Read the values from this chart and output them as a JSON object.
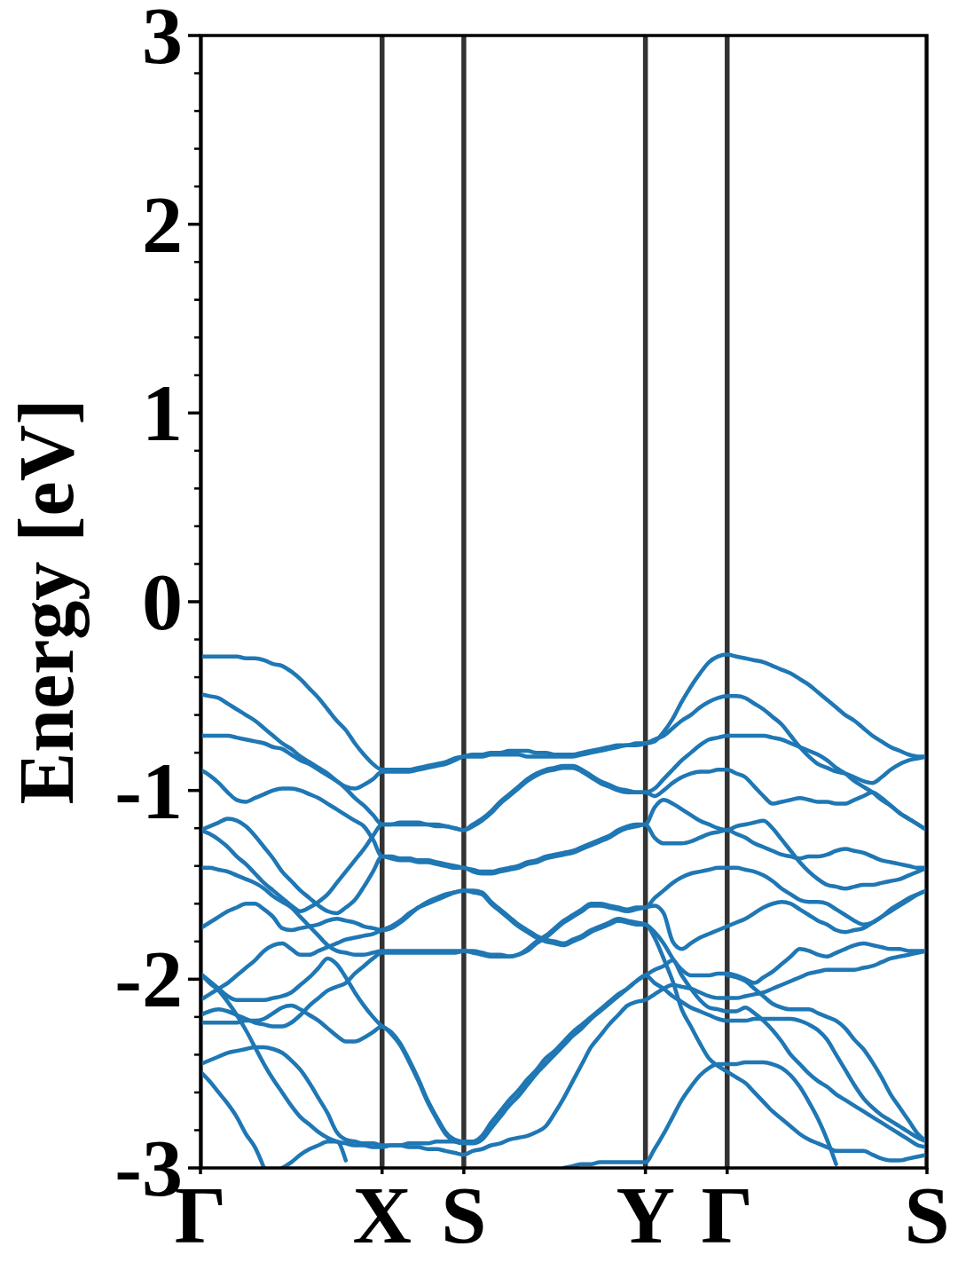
{
  "chart_data": {
    "type": "line",
    "ylabel": "Energy [eV]",
    "grid": "x",
    "categories": [
      "Γ",
      null,
      null,
      null,
      null,
      null,
      null,
      null,
      null,
      null,
      null,
      null,
      null,
      null,
      null,
      null,
      null,
      null,
      null,
      null,
      "X",
      null,
      null,
      null,
      null,
      null,
      null,
      null,
      null,
      "S",
      null,
      null,
      null,
      null,
      null,
      null,
      null,
      null,
      null,
      null,
      null,
      null,
      null,
      null,
      null,
      null,
      null,
      null,
      null,
      "Y",
      null,
      null,
      null,
      null,
      null,
      null,
      null,
      null,
      "Γ",
      null,
      null,
      null,
      null,
      null,
      null,
      null,
      null,
      null,
      null,
      null,
      null,
      null,
      null,
      null,
      null,
      null,
      null,
      null,
      null,
      null,
      "S"
    ],
    "ylim": [
      -3,
      3
    ],
    "yticks": [
      -3,
      {
        "value": -2.8,
        "label": null
      },
      {
        "value": -2.6,
        "label": null
      },
      {
        "value": -2.4,
        "label": null
      },
      {
        "value": -2.2,
        "label": null
      },
      -2,
      {
        "value": -1.8,
        "label": null
      },
      {
        "value": -1.6,
        "label": null
      },
      {
        "value": -1.4,
        "label": null
      },
      {
        "value": -1.2,
        "label": null
      },
      -1,
      {
        "value": -0.8,
        "label": null
      },
      {
        "value": -0.6,
        "label": null
      },
      {
        "value": -0.4,
        "label": null
      },
      {
        "value": -0.2,
        "label": null
      },
      0,
      {
        "value": 0.2,
        "label": null
      },
      {
        "value": 0.4,
        "label": null
      },
      {
        "value": 0.6,
        "label": null
      },
      {
        "value": 0.8,
        "label": null
      },
      1,
      {
        "value": 1.2,
        "label": null
      },
      {
        "value": 1.4,
        "label": null
      },
      {
        "value": 1.6,
        "label": null
      },
      {
        "value": 1.8,
        "label": null
      },
      2,
      {
        "value": 2.2,
        "label": null
      },
      {
        "value": 2.4,
        "label": null
      },
      {
        "value": 2.6,
        "label": null
      },
      {
        "value": 2.8,
        "label": null
      },
      3
    ],
    "series": [
      {
        "color": "#1f77b4",
        "values": [
          -0.29,
          -0.29,
          -0.29,
          -0.29,
          -0.29,
          -0.3,
          -0.3,
          -0.31,
          -0.33,
          -0.34,
          -0.37,
          -0.41,
          -0.46,
          -0.51,
          -0.57,
          -0.63,
          -0.68,
          -0.75,
          -0.81,
          -0.86,
          -0.89,
          -0.89,
          -0.89,
          -0.89,
          -0.88,
          -0.87,
          -0.86,
          -0.85,
          -0.83,
          -0.82,
          -0.81,
          -0.81,
          -0.8,
          -0.8,
          -0.79,
          -0.79,
          -0.79,
          -0.8,
          -0.8,
          -0.81,
          -0.81,
          -0.81,
          -0.8,
          -0.79,
          -0.78,
          -0.77,
          -0.76,
          -0.76,
          -0.75,
          -0.75,
          -0.74,
          -0.69,
          -0.62,
          -0.53,
          -0.45,
          -0.38,
          -0.32,
          -0.29,
          -0.28,
          -0.29,
          -0.3,
          -0.31,
          -0.32,
          -0.34,
          -0.36,
          -0.38,
          -0.41,
          -0.44,
          -0.48,
          -0.52,
          -0.56,
          -0.6,
          -0.63,
          -0.67,
          -0.71,
          -0.74,
          -0.77,
          -0.79,
          -0.81,
          -0.82,
          -0.82
        ]
      },
      {
        "color": "#1f77b4",
        "values": [
          -0.49,
          -0.5,
          -0.51,
          -0.54,
          -0.57,
          -0.6,
          -0.63,
          -0.67,
          -0.71,
          -0.75,
          -0.78,
          -0.82,
          -0.85,
          -0.88,
          -0.91,
          -0.95,
          -0.98,
          -0.99,
          -0.97,
          -0.94,
          -0.9,
          -0.9,
          -0.9,
          -0.9,
          -0.89,
          -0.88,
          -0.87,
          -0.86,
          -0.84,
          -0.82,
          -0.82,
          -0.82,
          -0.81,
          -0.81,
          -0.81,
          -0.81,
          -0.82,
          -0.82,
          -0.82,
          -0.82,
          -0.82,
          -0.82,
          -0.81,
          -0.8,
          -0.79,
          -0.78,
          -0.77,
          -0.76,
          -0.76,
          -0.75,
          -0.73,
          -0.71,
          -0.67,
          -0.63,
          -0.6,
          -0.56,
          -0.53,
          -0.51,
          -0.5,
          -0.5,
          -0.51,
          -0.54,
          -0.57,
          -0.61,
          -0.65,
          -0.71,
          -0.77,
          -0.82,
          -0.86,
          -0.88,
          -0.9,
          -0.91,
          -0.93,
          -0.95,
          -0.96,
          -0.93,
          -0.89,
          -0.86,
          -0.84,
          -0.83,
          -0.82
        ]
      },
      {
        "color": "#1f77b4",
        "values": [
          -0.71,
          -0.71,
          -0.71,
          -0.71,
          -0.72,
          -0.73,
          -0.74,
          -0.75,
          -0.77,
          -0.78,
          -0.81,
          -0.84,
          -0.86,
          -0.89,
          -0.92,
          -0.95,
          -0.99,
          -1.04,
          -1.08,
          -1.13,
          -1.18,
          -1.18,
          -1.17,
          -1.17,
          -1.17,
          -1.18,
          -1.18,
          -1.19,
          -1.2,
          -1.21,
          -1.18,
          -1.15,
          -1.11,
          -1.06,
          -1.02,
          -0.98,
          -0.94,
          -0.91,
          -0.89,
          -0.88,
          -0.87,
          -0.87,
          -0.89,
          -0.92,
          -0.95,
          -0.97,
          -0.99,
          -1.0,
          -1.01,
          -1.01,
          -0.99,
          -0.94,
          -0.89,
          -0.84,
          -0.8,
          -0.76,
          -0.73,
          -0.72,
          -0.71,
          -0.71,
          -0.71,
          -0.71,
          -0.71,
          -0.72,
          -0.73,
          -0.75,
          -0.77,
          -0.79,
          -0.81,
          -0.84,
          -0.88,
          -0.91,
          -0.95,
          -0.98,
          -1.01,
          -1.05,
          -1.08,
          -1.12,
          -1.15,
          -1.18,
          -1.21
        ]
      },
      {
        "color": "#1f77b4",
        "values": [
          -1.21,
          -1.23,
          -1.26,
          -1.3,
          -1.35,
          -1.39,
          -1.44,
          -1.49,
          -1.53,
          -1.57,
          -1.61,
          -1.64,
          -1.62,
          -1.59,
          -1.55,
          -1.49,
          -1.43,
          -1.37,
          -1.31,
          -1.24,
          -1.18,
          -1.18,
          -1.18,
          -1.18,
          -1.18,
          -1.18,
          -1.19,
          -1.19,
          -1.2,
          -1.21,
          -1.19,
          -1.16,
          -1.12,
          -1.07,
          -1.03,
          -0.99,
          -0.95,
          -0.92,
          -0.9,
          -0.89,
          -0.88,
          -0.88,
          -0.9,
          -0.93,
          -0.96,
          -0.98,
          -1.0,
          -1.01,
          -1.01,
          -1.01,
          -1.03,
          -1.0,
          -0.96,
          -0.93,
          -0.91,
          -0.9,
          -0.9,
          -0.89,
          -0.89,
          -0.91,
          -0.93,
          -0.98,
          -1.03,
          -1.07,
          -1.06,
          -1.05,
          -1.04,
          -1.05,
          -1.06,
          -1.06,
          -1.07,
          -1.07,
          -1.05,
          -1.03,
          -1.01,
          -1.04,
          -1.08,
          -1.12,
          -1.15,
          -1.18,
          -1.21
        ]
      },
      {
        "color": "#1f77b4",
        "values": [
          -0.89,
          -0.92,
          -0.96,
          -1.01,
          -1.05,
          -1.06,
          -1.04,
          -1.02,
          -1.0,
          -0.99,
          -0.99,
          -1.0,
          -1.02,
          -1.04,
          -1.07,
          -1.1,
          -1.13,
          -1.16,
          -1.19,
          -1.26,
          -1.35,
          -1.35,
          -1.36,
          -1.36,
          -1.37,
          -1.37,
          -1.38,
          -1.39,
          -1.4,
          -1.41,
          -1.42,
          -1.43,
          -1.43,
          -1.42,
          -1.41,
          -1.4,
          -1.38,
          -1.37,
          -1.35,
          -1.34,
          -1.33,
          -1.32,
          -1.3,
          -1.28,
          -1.26,
          -1.24,
          -1.21,
          -1.19,
          -1.18,
          -1.18,
          -1.09,
          -1.05,
          -1.07,
          -1.1,
          -1.13,
          -1.16,
          -1.18,
          -1.2,
          -1.21,
          -1.19,
          -1.18,
          -1.17,
          -1.16,
          -1.2,
          -1.26,
          -1.32,
          -1.38,
          -1.43,
          -1.47,
          -1.5,
          -1.51,
          -1.52,
          -1.51,
          -1.5,
          -1.5,
          -1.49,
          -1.48,
          -1.47,
          -1.45,
          -1.43,
          -1.41
        ]
      },
      {
        "color": "#1f77b4",
        "values": [
          -1.21,
          -1.19,
          -1.17,
          -1.15,
          -1.16,
          -1.19,
          -1.24,
          -1.3,
          -1.36,
          -1.43,
          -1.48,
          -1.53,
          -1.57,
          -1.61,
          -1.64,
          -1.65,
          -1.62,
          -1.58,
          -1.51,
          -1.43,
          -1.35,
          -1.36,
          -1.37,
          -1.37,
          -1.38,
          -1.38,
          -1.39,
          -1.4,
          -1.41,
          -1.41,
          -1.43,
          -1.44,
          -1.44,
          -1.43,
          -1.42,
          -1.41,
          -1.39,
          -1.38,
          -1.36,
          -1.35,
          -1.34,
          -1.33,
          -1.31,
          -1.29,
          -1.27,
          -1.25,
          -1.22,
          -1.2,
          -1.19,
          -1.18,
          -1.25,
          -1.28,
          -1.28,
          -1.28,
          -1.27,
          -1.25,
          -1.23,
          -1.22,
          -1.21,
          -1.23,
          -1.25,
          -1.28,
          -1.3,
          -1.32,
          -1.34,
          -1.35,
          -1.36,
          -1.35,
          -1.35,
          -1.34,
          -1.32,
          -1.31,
          -1.32,
          -1.33,
          -1.35,
          -1.37,
          -1.38,
          -1.39,
          -1.4,
          -1.41,
          -1.41
        ]
      },
      {
        "color": "#1f77b4",
        "values": [
          -1.73,
          -1.7,
          -1.67,
          -1.64,
          -1.62,
          -1.6,
          -1.6,
          -1.63,
          -1.67,
          -1.73,
          -1.74,
          -1.73,
          -1.72,
          -1.71,
          -1.69,
          -1.68,
          -1.69,
          -1.7,
          -1.72,
          -1.73,
          -1.74,
          -1.73,
          -1.7,
          -1.66,
          -1.62,
          -1.6,
          -1.58,
          -1.56,
          -1.54,
          -1.53,
          -1.53,
          -1.54,
          -1.59,
          -1.63,
          -1.67,
          -1.71,
          -1.74,
          -1.77,
          -1.79,
          -1.8,
          -1.81,
          -1.79,
          -1.77,
          -1.74,
          -1.72,
          -1.7,
          -1.68,
          -1.69,
          -1.7,
          -1.71,
          -1.75,
          -1.81,
          -1.89,
          -1.95,
          -1.98,
          -1.98,
          -1.98,
          -1.97,
          -1.97,
          -1.98,
          -2.0,
          -2.02,
          -1.99,
          -1.96,
          -1.92,
          -1.88,
          -1.84,
          -1.85,
          -1.87,
          -1.88,
          -1.86,
          -1.84,
          -1.82,
          -1.81,
          -1.82,
          -1.83,
          -1.84,
          -1.84,
          -1.85,
          -1.85,
          -1.85
        ]
      },
      {
        "color": "#1f77b4",
        "values": [
          -2.11,
          -2.08,
          -2.05,
          -2.02,
          -1.98,
          -1.94,
          -1.9,
          -1.85,
          -1.82,
          -1.81,
          -1.84,
          -1.87,
          -1.87,
          -1.85,
          -1.83,
          -1.81,
          -1.79,
          -1.78,
          -1.77,
          -1.76,
          -1.74,
          -1.72,
          -1.69,
          -1.65,
          -1.62,
          -1.59,
          -1.57,
          -1.55,
          -1.54,
          -1.53,
          -1.54,
          -1.55,
          -1.6,
          -1.64,
          -1.68,
          -1.72,
          -1.75,
          -1.78,
          -1.8,
          -1.81,
          -1.82,
          -1.8,
          -1.78,
          -1.75,
          -1.73,
          -1.71,
          -1.69,
          -1.7,
          -1.71,
          -1.71,
          -1.78,
          -1.89,
          -2.01,
          -2.16,
          -2.25,
          -2.34,
          -2.42,
          -2.46,
          -2.49,
          -2.52,
          -2.55,
          -2.6,
          -2.65,
          -2.7,
          -2.74,
          -2.78,
          -2.82,
          -2.85,
          -2.87,
          -2.89,
          -2.91,
          -2.91,
          -2.91,
          -2.91,
          -2.93,
          -2.95,
          -2.96,
          -2.96,
          -2.95,
          -2.94,
          -2.93
        ]
      },
      {
        "color": "#1f77b4",
        "values": [
          -1.41,
          -1.41,
          -1.42,
          -1.43,
          -1.45,
          -1.47,
          -1.49,
          -1.52,
          -1.56,
          -1.59,
          -1.62,
          -1.67,
          -1.72,
          -1.77,
          -1.82,
          -1.85,
          -1.86,
          -1.87,
          -1.87,
          -1.86,
          -1.85,
          -1.85,
          -1.85,
          -1.85,
          -1.85,
          -1.85,
          -1.85,
          -1.85,
          -1.85,
          -1.85,
          -1.85,
          -1.86,
          -1.87,
          -1.87,
          -1.88,
          -1.87,
          -1.84,
          -1.8,
          -1.77,
          -1.73,
          -1.69,
          -1.66,
          -1.63,
          -1.6,
          -1.6,
          -1.61,
          -1.62,
          -1.63,
          -1.62,
          -1.62,
          -1.57,
          -1.53,
          -1.49,
          -1.46,
          -1.44,
          -1.43,
          -1.42,
          -1.41,
          -1.41,
          -1.41,
          -1.42,
          -1.43,
          -1.45,
          -1.48,
          -1.52,
          -1.55,
          -1.58,
          -1.59,
          -1.59,
          -1.6,
          -1.63,
          -1.66,
          -1.69,
          -1.71,
          -1.7,
          -1.67,
          -1.63,
          -1.6,
          -1.57,
          -1.55,
          -1.53
        ]
      },
      {
        "color": "#1f77b4",
        "values": [
          -2.19,
          -2.17,
          -2.16,
          -2.17,
          -2.19,
          -2.21,
          -2.23,
          -2.24,
          -2.25,
          -2.25,
          -2.23,
          -2.19,
          -2.14,
          -2.1,
          -2.06,
          -2.04,
          -2.02,
          -1.97,
          -1.93,
          -1.89,
          -1.86,
          -1.86,
          -1.86,
          -1.86,
          -1.86,
          -1.86,
          -1.86,
          -1.86,
          -1.86,
          -1.85,
          -1.86,
          -1.87,
          -1.88,
          -1.88,
          -1.88,
          -1.87,
          -1.85,
          -1.81,
          -1.78,
          -1.74,
          -1.7,
          -1.67,
          -1.64,
          -1.61,
          -1.61,
          -1.62,
          -1.63,
          -1.64,
          -1.63,
          -1.62,
          -1.61,
          -1.65,
          -1.8,
          -1.84,
          -1.81,
          -1.78,
          -1.76,
          -1.74,
          -1.72,
          -1.7,
          -1.68,
          -1.65,
          -1.62,
          -1.6,
          -1.59,
          -1.6,
          -1.63,
          -1.66,
          -1.69,
          -1.71,
          -1.74,
          -1.75,
          -1.74,
          -1.73,
          -1.7,
          -1.67,
          -1.64,
          -1.61,
          -1.58,
          -1.55,
          -1.53
        ]
      },
      {
        "color": "#1f77b4",
        "values": [
          -1.97,
          -2.01,
          -2.05,
          -2.09,
          -2.11,
          -2.11,
          -2.11,
          -2.11,
          -2.1,
          -2.09,
          -2.07,
          -2.03,
          -1.99,
          -1.94,
          -1.89,
          -1.92,
          -1.99,
          -2.07,
          -2.14,
          -2.2,
          -2.25,
          -2.28,
          -2.34,
          -2.43,
          -2.53,
          -2.64,
          -2.73,
          -2.81,
          -2.85,
          -2.86,
          -2.86,
          -2.83,
          -2.76,
          -2.7,
          -2.64,
          -2.59,
          -2.53,
          -2.48,
          -2.42,
          -2.38,
          -2.33,
          -2.28,
          -2.24,
          -2.2,
          -2.16,
          -2.12,
          -2.08,
          -2.05,
          -2.01,
          -1.98,
          -1.95,
          -1.93,
          -1.9,
          -1.98,
          -2.05,
          -2.11,
          -2.15,
          -2.16,
          -2.17,
          -2.17,
          -2.15,
          -2.18,
          -2.22,
          -2.27,
          -2.33,
          -2.4,
          -2.45,
          -2.5,
          -2.54,
          -2.57,
          -2.61,
          -2.64,
          -2.67,
          -2.7,
          -2.73,
          -2.76,
          -2.79,
          -2.82,
          -2.85,
          -2.88,
          -2.89
        ]
      },
      {
        "color": "#1f77b4",
        "values": [
          -2.23,
          -2.23,
          -2.23,
          -2.23,
          -2.23,
          -2.22,
          -2.22,
          -2.21,
          -2.18,
          -2.15,
          -2.14,
          -2.16,
          -2.19,
          -2.22,
          -2.26,
          -2.3,
          -2.33,
          -2.33,
          -2.31,
          -2.28,
          -2.25,
          -2.29,
          -2.35,
          -2.44,
          -2.54,
          -2.65,
          -2.74,
          -2.82,
          -2.86,
          -2.87,
          -2.87,
          -2.85,
          -2.79,
          -2.73,
          -2.67,
          -2.62,
          -2.56,
          -2.5,
          -2.45,
          -2.4,
          -2.35,
          -2.3,
          -2.26,
          -2.21,
          -2.17,
          -2.13,
          -2.09,
          -2.05,
          -2.01,
          -1.98,
          -2.02,
          -2.05,
          -2.09,
          -2.12,
          -2.15,
          -2.17,
          -2.19,
          -2.21,
          -2.22,
          -2.22,
          -2.22,
          -2.21,
          -2.21,
          -2.21,
          -2.21,
          -2.21,
          -2.22,
          -2.24,
          -2.27,
          -2.32,
          -2.4,
          -2.48,
          -2.56,
          -2.63,
          -2.68,
          -2.72,
          -2.75,
          -2.78,
          -2.81,
          -2.84,
          -2.86
        ]
      },
      {
        "color": "#1f77b4",
        "values": [
          -2.45,
          -2.43,
          -2.41,
          -2.39,
          -2.38,
          -2.37,
          -2.36,
          -2.36,
          -2.37,
          -2.39,
          -2.43,
          -2.48,
          -2.55,
          -2.63,
          -2.71,
          -2.81,
          -2.85,
          -2.86,
          -2.87,
          -2.87,
          -2.88,
          -2.88,
          -2.88,
          -2.89,
          -2.89,
          -2.9,
          -2.9,
          -2.91,
          -2.92,
          -2.93,
          -2.91,
          -2.9,
          -2.88,
          -2.87,
          -2.85,
          -2.84,
          -2.83,
          -2.81,
          -2.78,
          -2.71,
          -2.63,
          -2.54,
          -2.45,
          -2.36,
          -2.3,
          -2.24,
          -2.19,
          -2.14,
          -2.12,
          -2.11,
          -2.08,
          -2.05,
          -2.03,
          -2.04,
          -2.05,
          -2.07,
          -2.09,
          -2.1,
          -2.1,
          -2.1,
          -2.09,
          -2.08,
          -2.07,
          -2.05,
          -2.03,
          -2.01,
          -1.99,
          -1.97,
          -1.96,
          -1.95,
          -1.95,
          -1.95,
          -1.95,
          -1.94,
          -1.93,
          -1.91,
          -1.89,
          -1.88,
          -1.87,
          -1.86,
          -1.85
        ]
      },
      {
        "color": "#1f77b4",
        "values": [
          null,
          null,
          null,
          null,
          null,
          null,
          null,
          null,
          null,
          -3,
          -2.97,
          -2.93,
          -2.9,
          -2.88,
          -2.86,
          -2.86,
          -2.96,
          null,
          null,
          null,
          null,
          null,
          null,
          null,
          null,
          null,
          null,
          null,
          null,
          null,
          null,
          null,
          null,
          null,
          null,
          null,
          null,
          null,
          null,
          null,
          null,
          null,
          null,
          null,
          null,
          null,
          null,
          null,
          null,
          null,
          null,
          null,
          null,
          null,
          null,
          null,
          null,
          null,
          null,
          null,
          null,
          null,
          null,
          null,
          null,
          null,
          null,
          null,
          null,
          null,
          null,
          null,
          null,
          null,
          null,
          null,
          null,
          null,
          null,
          null,
          null
        ]
      },
      {
        "color": "#1f77b4",
        "values": [
          -1.97,
          -2.02,
          -2.06,
          -2.12,
          -2.19,
          -2.27,
          -2.36,
          -2.45,
          -2.53,
          -2.6,
          -2.67,
          -2.73,
          -2.77,
          -2.81,
          -2.84,
          -2.86,
          -2.87,
          -2.88,
          -2.88,
          -2.89,
          -2.89,
          -2.88,
          -2.88,
          -2.87,
          -2.87,
          -2.87,
          -2.86,
          -2.86,
          -2.86,
          -2.86,
          null,
          null,
          null,
          null,
          null,
          null,
          null,
          null,
          null,
          null,
          null,
          null,
          null,
          null,
          null,
          null,
          null,
          null,
          null,
          null,
          null,
          null,
          null,
          null,
          null,
          null,
          null,
          null,
          null,
          null,
          null,
          null,
          null,
          null,
          null,
          null,
          null,
          null,
          null,
          null,
          null,
          null,
          null,
          null,
          null,
          null,
          null,
          null,
          null,
          null,
          null
        ]
      },
      {
        "color": "#1f77b4",
        "values": [
          -2.49,
          -2.54,
          -2.6,
          -2.66,
          -2.73,
          -2.82,
          -2.89,
          -3,
          null,
          null,
          null,
          null,
          null,
          null,
          null,
          null,
          null,
          null,
          null,
          null,
          null,
          null,
          null,
          null,
          null,
          null,
          null,
          null,
          null,
          null,
          null,
          null,
          null,
          null,
          null,
          null,
          null,
          null,
          null,
          null,
          null,
          null,
          null,
          null,
          null,
          null,
          null,
          null,
          null,
          null,
          null,
          null,
          null,
          null,
          null,
          null,
          null,
          null,
          null,
          null,
          null,
          null,
          null,
          null,
          null,
          null,
          null,
          null,
          null,
          null,
          null,
          null,
          null,
          null,
          null,
          null,
          null,
          null,
          null,
          null,
          null
        ]
      },
      {
        "color": "#1f77b4",
        "values": [
          null,
          null,
          null,
          null,
          null,
          null,
          null,
          null,
          null,
          null,
          null,
          null,
          null,
          null,
          null,
          null,
          null,
          null,
          null,
          null,
          null,
          null,
          null,
          null,
          null,
          null,
          null,
          null,
          null,
          null,
          null,
          null,
          null,
          null,
          null,
          null,
          null,
          null,
          null,
          null,
          -3,
          -2.99,
          -2.98,
          -2.98,
          -2.97,
          -2.97,
          -2.97,
          -2.97,
          -2.97,
          -2.97,
          -2.9,
          -2.82,
          -2.73,
          -2.64,
          -2.57,
          -2.51,
          -2.47,
          -2.45,
          -2.45,
          -2.45,
          -2.44,
          -2.44,
          -2.44,
          -2.45,
          -2.47,
          -2.51,
          -2.57,
          -2.65,
          -2.74,
          -2.85,
          -2.98,
          null,
          null,
          null,
          null,
          null,
          null,
          null,
          null,
          null,
          null
        ]
      },
      {
        "color": "#1f77b4",
        "values": [
          null,
          null,
          null,
          null,
          null,
          null,
          null,
          null,
          null,
          null,
          null,
          null,
          null,
          null,
          null,
          null,
          null,
          null,
          null,
          null,
          null,
          null,
          null,
          null,
          null,
          null,
          null,
          null,
          null,
          null,
          null,
          null,
          null,
          null,
          null,
          null,
          null,
          null,
          null,
          null,
          null,
          null,
          null,
          null,
          null,
          null,
          null,
          null,
          null,
          null,
          null,
          null,
          null,
          null,
          null,
          null,
          null,
          null,
          -1.98,
          -1.99,
          -2.01,
          -2.05,
          -2.09,
          -2.13,
          -2.15,
          -2.16,
          -2.16,
          -2.16,
          -2.18,
          -2.2,
          -2.22,
          -2.26,
          -2.32,
          -2.37,
          -2.44,
          -2.52,
          -2.61,
          -2.68,
          -2.75,
          -2.82,
          -2.86
        ]
      }
    ]
  }
}
